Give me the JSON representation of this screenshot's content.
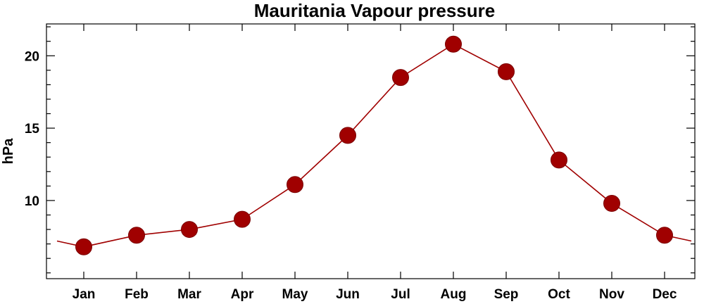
{
  "chart_data": {
    "type": "line",
    "title": "Mauritania Vapour pressure",
    "xlabel": "",
    "ylabel": "hPa",
    "categories": [
      "Jan",
      "Feb",
      "Mar",
      "Apr",
      "May",
      "Jun",
      "Jul",
      "Aug",
      "Sep",
      "Oct",
      "Nov",
      "Dec"
    ],
    "values": [
      6.8,
      7.6,
      8.0,
      8.7,
      11.1,
      14.5,
      18.5,
      20.8,
      18.9,
      12.8,
      9.8,
      7.6
    ],
    "ylim": [
      4.6,
      22.2
    ],
    "yticks_major": [
      10,
      15,
      20
    ],
    "yticks_minor": [
      5,
      6,
      7,
      8,
      9,
      11,
      12,
      13,
      14,
      16,
      17,
      18,
      19,
      21,
      22
    ],
    "wrap_edges": {
      "left": 7.2,
      "right": 7.2
    },
    "grid": false,
    "legend": "none",
    "colors": {
      "line": "#a00000",
      "marker": "#a00000"
    }
  }
}
